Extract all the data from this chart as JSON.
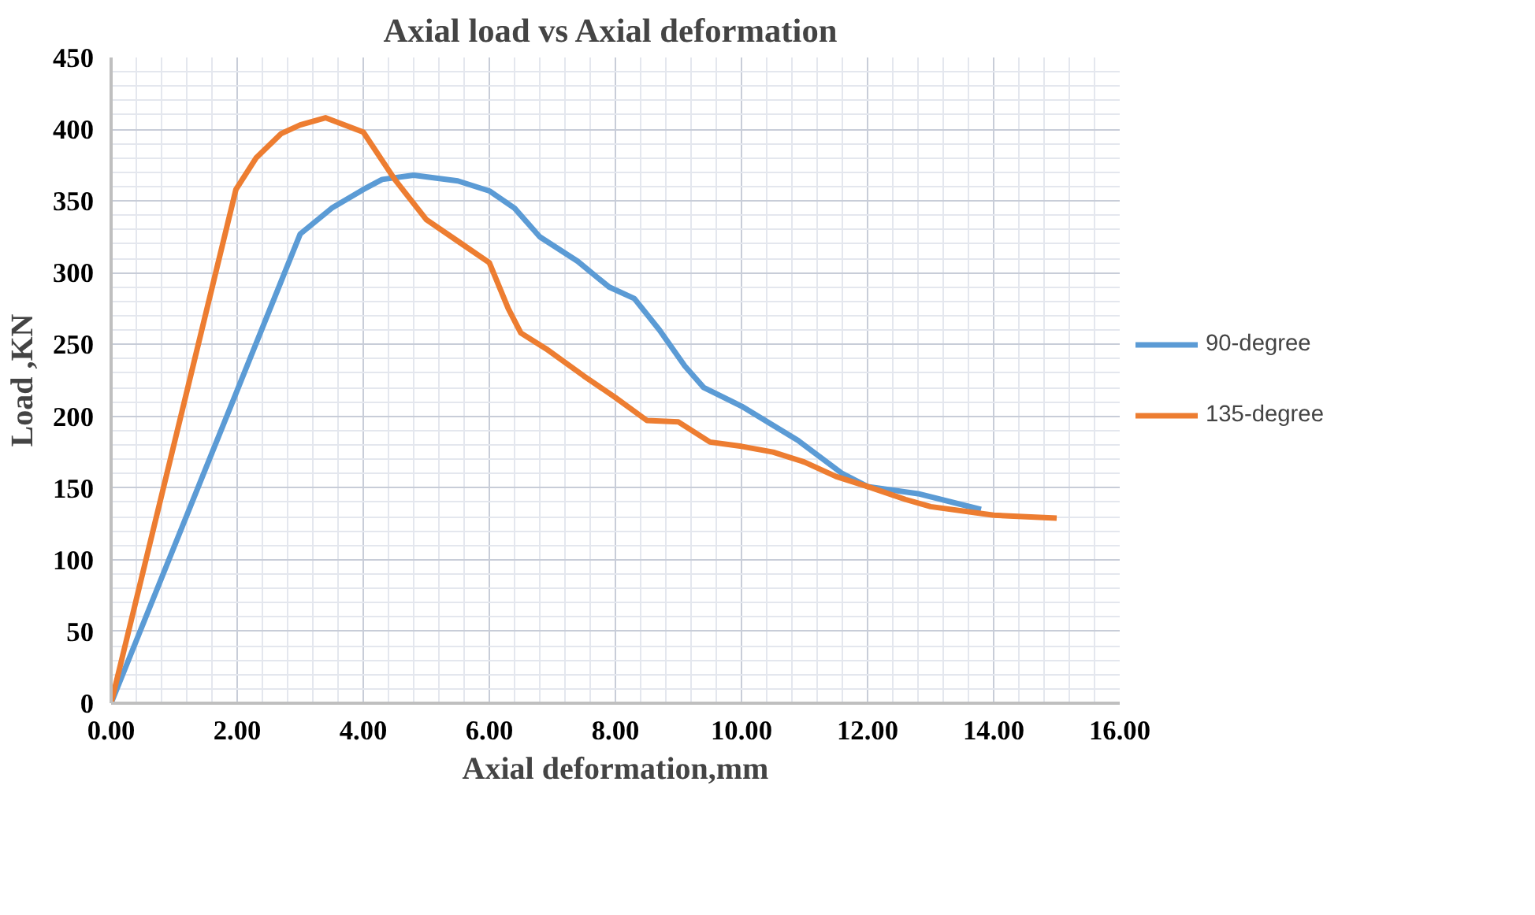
{
  "chart_data": {
    "type": "line",
    "title": "Axial load vs  Axial deformation",
    "xlabel": "Axial deformation,mm",
    "ylabel": "Load ,KN",
    "xlim": [
      0,
      16
    ],
    "xticks": [
      {
        "value": 0,
        "label": "0.00"
      },
      {
        "value": 2,
        "label": "2.00"
      },
      {
        "value": 4,
        "label": "4.00"
      },
      {
        "value": 6,
        "label": "6.00"
      },
      {
        "value": 8,
        "label": "8.00"
      },
      {
        "value": 10,
        "label": "10.00"
      },
      {
        "value": 12,
        "label": "12.00"
      },
      {
        "value": 14,
        "label": "14.00"
      },
      {
        "value": 16,
        "label": "16.00"
      }
    ],
    "ylim": [
      0,
      450
    ],
    "yticks": [
      0,
      50,
      100,
      150,
      200,
      250,
      300,
      350,
      400,
      450
    ],
    "grid": true,
    "legend": "right",
    "line_style": "solid",
    "marker": "none",
    "series": [
      {
        "name": "90-degree",
        "color": "#5b9bd5",
        "x": [
          0,
          3.0,
          3.5,
          4.0,
          4.3,
          4.8,
          5.5,
          6.0,
          6.4,
          6.8,
          7.4,
          7.9,
          8.3,
          8.7,
          9.1,
          9.4,
          10.0,
          10.9,
          11.6,
          12.0,
          12.8,
          13.8
        ],
        "values": [
          0,
          327,
          345,
          358,
          365,
          368,
          364,
          357,
          345,
          325,
          308,
          290,
          282,
          260,
          235,
          220,
          207,
          183,
          160,
          151,
          146,
          135
        ]
      },
      {
        "name": "135-degree",
        "color": "#ed7d31",
        "x": [
          0,
          1.98,
          2.3,
          2.7,
          3.0,
          3.4,
          4.0,
          4.5,
          5.0,
          5.5,
          6.0,
          6.3,
          6.5,
          6.9,
          7.5,
          8.0,
          8.5,
          9.0,
          9.5,
          10.0,
          10.5,
          11.0,
          11.5,
          12.0,
          12.6,
          13.0,
          14.0,
          15.0
        ],
        "values": [
          0,
          358,
          380,
          397,
          403,
          408,
          398,
          365,
          337,
          322,
          307,
          275,
          258,
          247,
          228,
          213,
          197,
          196,
          182,
          179,
          175,
          168,
          158,
          151,
          142,
          137,
          131,
          129
        ]
      }
    ]
  }
}
